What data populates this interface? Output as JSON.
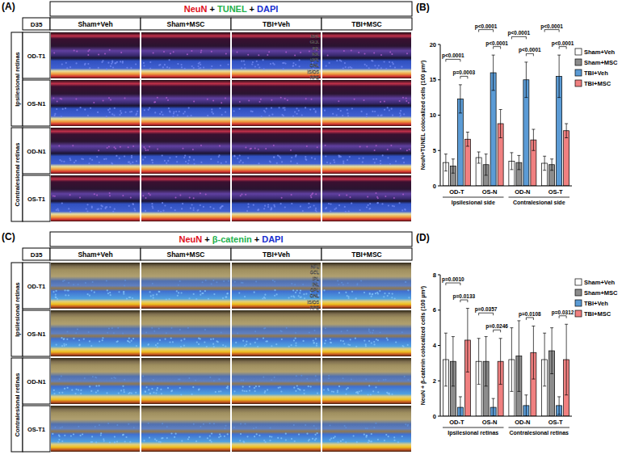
{
  "image_panels": [
    {
      "panel_label": "(A)",
      "stain": [
        {
          "text": "NeuN",
          "color": "#e0101a"
        },
        {
          "text": " + ",
          "color": "#000000"
        },
        {
          "text": "TUNEL",
          "color": "#22b14c"
        },
        {
          "text": " + ",
          "color": "#000000"
        },
        {
          "text": "DAPI",
          "color": "#1a2fd0"
        }
      ],
      "timepoint": "D35",
      "columns": [
        "Sham+Veh",
        "Sham+MSC",
        "TBI+Veh",
        "TBI+MSC"
      ],
      "groups": [
        {
          "label": "Ipsilesional retinas",
          "rows": [
            "OD-T1",
            "OS-N1"
          ]
        },
        {
          "label": "Contralesional retinas",
          "rows": [
            "OD-N1",
            "OS-T1"
          ]
        }
      ],
      "layers": [
        "NFL",
        "GCL",
        "IPL",
        "INL",
        "OPL",
        "ONL",
        "IS/OS",
        "RPE"
      ]
    },
    {
      "panel_label": "(C)",
      "stain": [
        {
          "text": "NeuN",
          "color": "#e0101a"
        },
        {
          "text": " + ",
          "color": "#000000"
        },
        {
          "text": "β-catenin",
          "color": "#22b14c"
        },
        {
          "text": " + ",
          "color": "#000000"
        },
        {
          "text": "DAPI",
          "color": "#1a2fd0"
        }
      ],
      "timepoint": "D35",
      "columns": [
        "Sham+Veh",
        "Sham+MSC",
        "TBI+Veh",
        "TBI+MSC"
      ],
      "groups": [
        {
          "label": "Ipsilesional retinas",
          "rows": [
            "OD-T1",
            "OS-N1"
          ]
        },
        {
          "label": "Contralesional retinas",
          "rows": [
            "OD-N1",
            "OS-T1"
          ]
        }
      ],
      "layers": [
        "NFL",
        "GCL",
        "IPL",
        "INL",
        "OPL",
        "ONL",
        "IS/OS",
        "RPE"
      ]
    }
  ],
  "chart_data": [
    {
      "type": "bar",
      "panel_label": "(B)",
      "ylabel": "NeuN+TUNEL colocalized cells (100 µm²)",
      "categories": [
        "OD-T",
        "OS-N",
        "OD-N",
        "OS-T"
      ],
      "category_groups": [
        {
          "label": "Ipsilesional side",
          "categories": [
            "OD-T",
            "OS-N"
          ]
        },
        {
          "label": "Contralesional side",
          "categories": [
            "OD-N",
            "OS-T"
          ]
        }
      ],
      "series": [
        {
          "name": "Sham+Veh",
          "color": "#ffffff",
          "values": [
            3.3,
            4.0,
            3.5,
            3.2
          ],
          "errors": [
            1.2,
            0.8,
            1.2,
            1.0
          ]
        },
        {
          "name": "Sham+MSC",
          "color": "#8c8c8c",
          "values": [
            2.8,
            3.0,
            3.3,
            3.0
          ],
          "errors": [
            1.0,
            1.5,
            1.0,
            0.8
          ]
        },
        {
          "name": "TBI+Veh",
          "color": "#5b9bd5",
          "values": [
            12.3,
            16.0,
            15.0,
            15.5
          ],
          "errors": [
            2.0,
            2.5,
            2.5,
            3.0
          ]
        },
        {
          "name": "TBI+MSC",
          "color": "#f08080",
          "values": [
            6.6,
            8.8,
            6.5,
            7.8
          ],
          "errors": [
            1.0,
            2.0,
            1.5,
            1.0
          ]
        }
      ],
      "ylim": [
        0,
        20
      ],
      "yticks": [
        0,
        5,
        10,
        15,
        20
      ],
      "legend": "right",
      "annotations": [
        {
          "label": "p<0.0001",
          "category": "OD-T",
          "from": "Sham+Veh",
          "to": "TBI+Veh"
        },
        {
          "label": "p=0.0003",
          "category": "OD-T",
          "from": "TBI+Veh",
          "to": "TBI+MSC"
        },
        {
          "label": "p<0.0001",
          "category": "OS-N",
          "from": "Sham+Veh",
          "to": "TBI+Veh"
        },
        {
          "label": "p<0.0001",
          "category": "OS-N",
          "from": "TBI+Veh",
          "to": "TBI+MSC"
        },
        {
          "label": "p<0.0001",
          "category": "OD-N",
          "from": "Sham+Veh",
          "to": "TBI+Veh"
        },
        {
          "label": "p<0.0001",
          "category": "OD-N",
          "from": "TBI+Veh",
          "to": "TBI+MSC"
        },
        {
          "label": "p<0.0001",
          "category": "OS-T",
          "from": "Sham+Veh",
          "to": "TBI+Veh"
        },
        {
          "label": "p<0.0001",
          "category": "OS-T",
          "from": "TBI+Veh",
          "to": "TBI+MSC"
        }
      ]
    },
    {
      "type": "bar",
      "panel_label": "(D)",
      "ylabel": "NeuN + β-catenin colocalized cells (100 µm²)",
      "categories": [
        "OD-T",
        "OS-N",
        "OD-N",
        "OS-T"
      ],
      "category_groups": [
        {
          "label": "Ipsilesional retinas",
          "categories": [
            "OD-T",
            "OS-N"
          ]
        },
        {
          "label": "Contralesional retinas",
          "categories": [
            "OD-N",
            "OS-T"
          ]
        }
      ],
      "series": [
        {
          "name": "Sham+Veh",
          "color": "#ffffff",
          "values": [
            3.2,
            3.1,
            3.2,
            3.2
          ],
          "errors": [
            1.5,
            1.3,
            1.8,
            1.5
          ]
        },
        {
          "name": "Sham+MSC",
          "color": "#8c8c8c",
          "values": [
            3.1,
            3.1,
            3.4,
            3.7
          ],
          "errors": [
            1.4,
            1.4,
            2.0,
            1.3
          ]
        },
        {
          "name": "TBI+Veh",
          "color": "#5b9bd5",
          "values": [
            0.5,
            0.5,
            0.6,
            0.6
          ],
          "errors": [
            0.6,
            0.5,
            0.6,
            0.5
          ]
        },
        {
          "name": "TBI+MSC",
          "color": "#f08080",
          "values": [
            4.3,
            3.1,
            3.6,
            3.2
          ],
          "errors": [
            1.8,
            1.3,
            1.5,
            2.0
          ]
        }
      ],
      "ylim": [
        0,
        8
      ],
      "yticks": [
        0,
        2,
        4,
        6,
        8
      ],
      "legend": "right",
      "annotations": [
        {
          "label": "p=0.0010",
          "category": "OD-T",
          "from": "Sham+Veh",
          "to": "TBI+Veh"
        },
        {
          "label": "p=0.0133",
          "category": "OD-T",
          "from": "TBI+Veh",
          "to": "TBI+MSC"
        },
        {
          "label": "p=0.0357",
          "category": "OS-N",
          "from": "Sham+Veh",
          "to": "TBI+Veh"
        },
        {
          "label": "p=0.0246",
          "category": "OS-N",
          "from": "TBI+Veh",
          "to": "TBI+MSC"
        },
        {
          "label": "p=0.0108",
          "category": "OD-N",
          "from": "TBI+Veh",
          "to": "TBI+MSC"
        },
        {
          "label": "p=0.0312",
          "category": "OS-T",
          "from": "TBI+Veh",
          "to": "TBI+MSC"
        }
      ]
    }
  ]
}
